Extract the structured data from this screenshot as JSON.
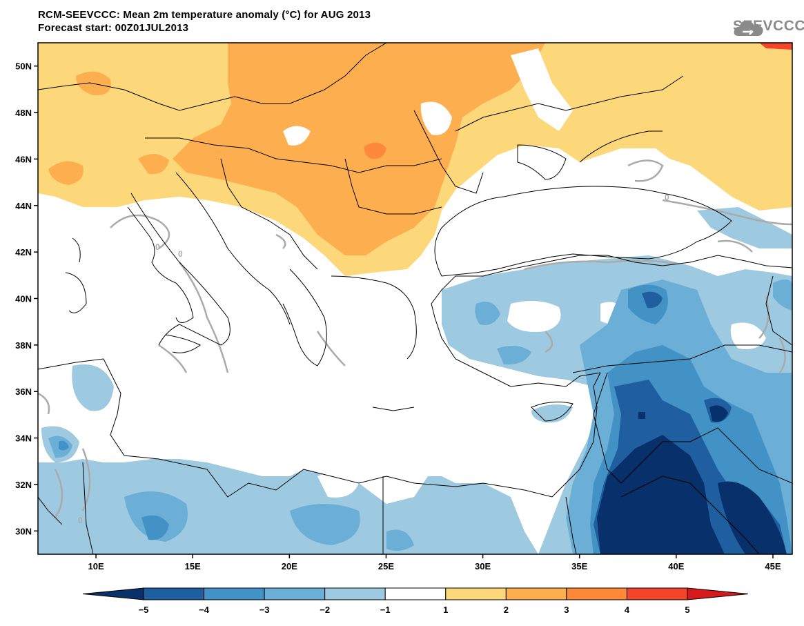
{
  "title": {
    "line1": "RCM-SEEVCCC: Mean 2m temperature anomaly (°C) for AUG 2013",
    "line2": "Forecast start: 00Z01JUL2013"
  },
  "logo": {
    "text": "SEEVCCC",
    "icon": "cloud-icon"
  },
  "map": {
    "lon_range": [
      7,
      46
    ],
    "lat_range": [
      29,
      51
    ],
    "lat_ticks": [
      {
        "value": 50,
        "label": "50N"
      },
      {
        "value": 48,
        "label": "48N"
      },
      {
        "value": 46,
        "label": "46N"
      },
      {
        "value": 44,
        "label": "44N"
      },
      {
        "value": 42,
        "label": "42N"
      },
      {
        "value": 40,
        "label": "40N"
      },
      {
        "value": 38,
        "label": "38N"
      },
      {
        "value": 36,
        "label": "36N"
      },
      {
        "value": 34,
        "label": "34N"
      },
      {
        "value": 32,
        "label": "32N"
      },
      {
        "value": 30,
        "label": "30N"
      }
    ],
    "lon_ticks": [
      {
        "value": 10,
        "label": "10E"
      },
      {
        "value": 15,
        "label": "15E"
      },
      {
        "value": 20,
        "label": "20E"
      },
      {
        "value": 25,
        "label": "25E"
      },
      {
        "value": 30,
        "label": "30E"
      },
      {
        "value": 35,
        "label": "35E"
      },
      {
        "value": 40,
        "label": "40E"
      },
      {
        "value": 45,
        "label": "45E"
      }
    ],
    "contour_label": "0"
  },
  "colorbar": {
    "levels": [
      "−5",
      "−4",
      "−3",
      "−2",
      "−1",
      "1",
      "2",
      "3",
      "4",
      "5"
    ],
    "colors": [
      "#08306b",
      "#1f5fa0",
      "#4292c6",
      "#6baed6",
      "#9ecae1",
      "#ffffff",
      "#fdd87a",
      "#fdae4f",
      "#fc8a3a",
      "#f4452b",
      "#d7191c"
    ]
  }
}
